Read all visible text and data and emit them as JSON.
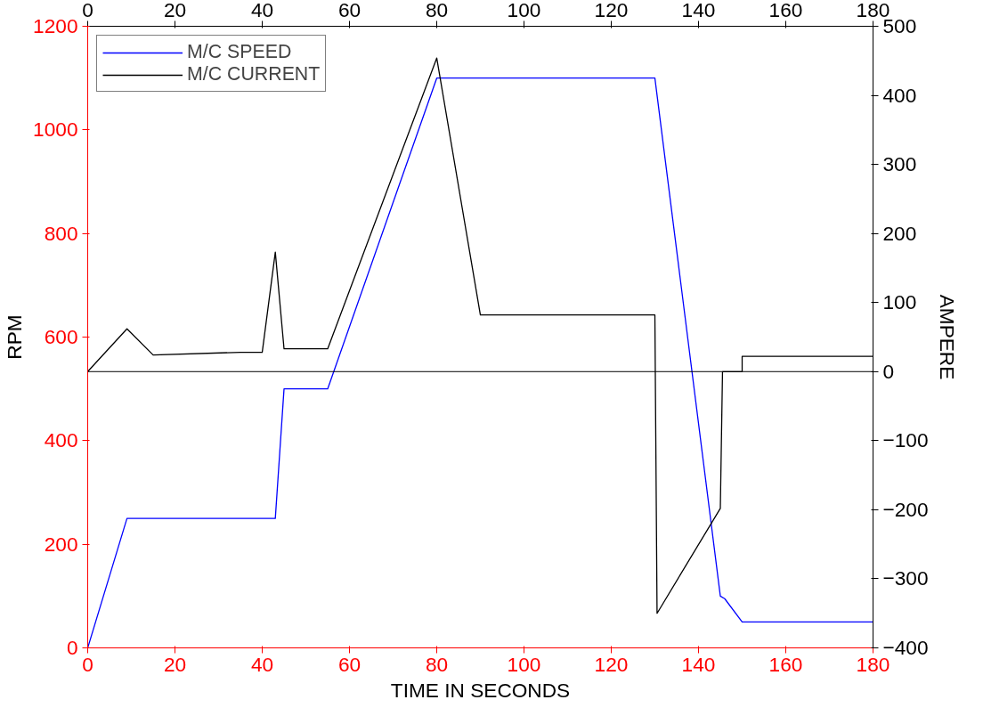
{
  "chart_data": {
    "type": "line",
    "xlabel": "TIME IN SECONDS",
    "ylabel": "RPM",
    "y2label": "AMPERE",
    "xlim": [
      0,
      180
    ],
    "xticks": [
      0,
      20,
      40,
      60,
      80,
      100,
      120,
      140,
      160,
      180
    ],
    "x2lim": [
      0,
      180
    ],
    "x2ticks": [
      0,
      20,
      40,
      60,
      80,
      100,
      120,
      140,
      160,
      180
    ],
    "ylim": [
      0,
      1200
    ],
    "yticks": [
      0,
      200,
      400,
      600,
      800,
      1000,
      1200
    ],
    "y2lim": [
      -400,
      500
    ],
    "y2ticks": [
      -400,
      -300,
      -200,
      -100,
      0,
      100,
      200,
      300,
      400,
      500
    ],
    "series": [
      {
        "name": "M/C SPEED",
        "color": "#0000ff",
        "x": [
          0,
          9,
          43,
          45,
          55,
          80,
          130,
          145,
          146,
          150,
          180
        ],
        "values": [
          0,
          250,
          250,
          500,
          500,
          1100,
          1100,
          100,
          95,
          50,
          50
        ]
      },
      {
        "name": "M/C CURRENT",
        "color": "#000000",
        "axis": "y2",
        "x": [
          0,
          9,
          15,
          35,
          40,
          43,
          45,
          55,
          80,
          90,
          130,
          130.5,
          145,
          145.5,
          150,
          150,
          180
        ],
        "values": [
          0,
          62,
          24,
          28,
          28,
          173,
          33,
          33,
          454,
          82,
          82,
          -350,
          -198,
          0,
          0,
          22,
          22
        ]
      }
    ],
    "ref_lines": [
      {
        "axis": "y2",
        "value": 0,
        "color": "#000000"
      }
    ],
    "legend": "top left",
    "grid": false,
    "line_style": "solid",
    "marker": "none"
  }
}
